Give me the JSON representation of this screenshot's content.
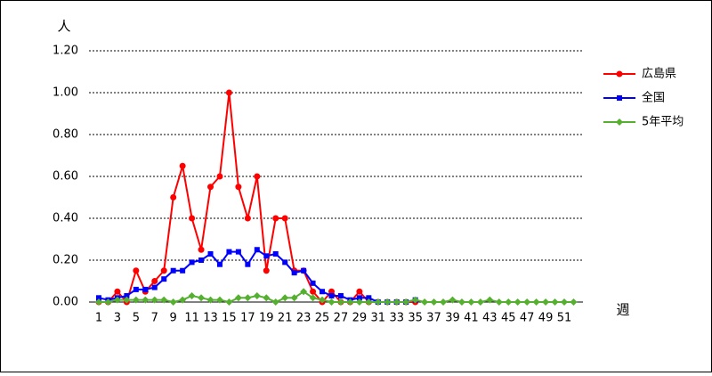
{
  "chart_data": {
    "type": "line",
    "y_axis_label": "人",
    "x_axis_label": "週",
    "categories": [
      1,
      null,
      3,
      null,
      5,
      null,
      7,
      null,
      9,
      null,
      11,
      null,
      13,
      null,
      15,
      null,
      17,
      null,
      19,
      null,
      21,
      null,
      23,
      null,
      25,
      null,
      27,
      null,
      29,
      null,
      31,
      null,
      33,
      null,
      35,
      null,
      37,
      null,
      39,
      null,
      41,
      null,
      43,
      null,
      45,
      null,
      47,
      null,
      49,
      null,
      51,
      null
    ],
    "series": [
      {
        "name": "広島県",
        "color": "#ff0000",
        "marker": "circle",
        "values": [
          0,
          0,
          0.05,
          0,
          0.15,
          0.05,
          0.1,
          0.15,
          0.5,
          0.65,
          0.4,
          0.25,
          0.55,
          0.6,
          1.0,
          0.55,
          0.4,
          0.6,
          0.15,
          0.4,
          0.4,
          0.15,
          0.15,
          0.05,
          0,
          0.05,
          0,
          0,
          0.05,
          0,
          0,
          0,
          0,
          0,
          0,
          null,
          null,
          null,
          null,
          null,
          null,
          null,
          null,
          null,
          null,
          null,
          null,
          null,
          null,
          null,
          null,
          null
        ]
      },
      {
        "name": "全国",
        "color": "#0000ff",
        "marker": "square",
        "values": [
          0.02,
          0.01,
          0.02,
          0.03,
          0.06,
          0.06,
          0.07,
          0.11,
          0.15,
          0.15,
          0.19,
          0.2,
          0.23,
          0.18,
          0.24,
          0.24,
          0.18,
          0.25,
          0.22,
          0.23,
          0.19,
          0.14,
          0.15,
          0.09,
          0.05,
          0.03,
          0.03,
          0.01,
          0.02,
          0.02,
          0,
          0,
          0,
          0,
          0.01,
          null,
          null,
          null,
          null,
          null,
          null,
          null,
          null,
          null,
          null,
          null,
          null,
          null,
          null,
          null,
          null,
          null
        ]
      },
      {
        "name": "5年平均",
        "color": "#55b030",
        "marker": "diamond",
        "values": [
          0,
          0,
          0.01,
          0.01,
          0.01,
          0.01,
          0.01,
          0.01,
          0,
          0.01,
          0.03,
          0.02,
          0.01,
          0.01,
          0,
          0.02,
          0.02,
          0.03,
          0.02,
          0,
          0.02,
          0.02,
          0.05,
          0.02,
          0.01,
          0,
          0,
          0,
          0,
          0,
          0,
          0,
          0,
          0,
          0.01,
          0,
          0,
          0,
          0.01,
          0,
          0,
          0,
          0.01,
          0,
          0,
          0,
          0,
          0,
          0,
          0,
          0,
          0
        ]
      }
    ],
    "ylim": [
      0,
      1.2
    ],
    "yticks": [
      {
        "value": 0,
        "label": "0.00"
      },
      {
        "value": 0.2,
        "label": "0.20"
      },
      {
        "value": 0.4,
        "label": "0.40"
      },
      {
        "value": 0.6,
        "label": "0.60"
      },
      {
        "value": 0.8,
        "label": "0.80"
      },
      {
        "value": 1.0,
        "label": "1.00"
      },
      {
        "value": 1.2,
        "label": "1.20"
      }
    ],
    "grid": true,
    "legend": "right"
  }
}
